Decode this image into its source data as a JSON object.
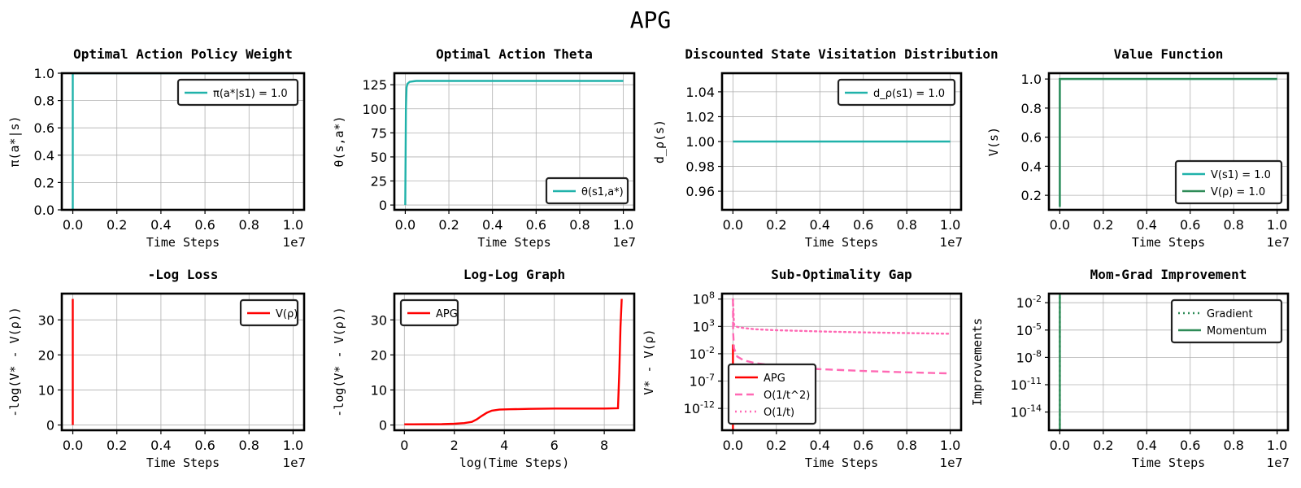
{
  "suptitle": "APG",
  "colors": {
    "teal": "#20b2aa",
    "green": "#2e8b57",
    "red": "#ff0000",
    "pink": "#ff69b4",
    "grid": "#b0b0b0"
  },
  "chart_data": [
    {
      "type": "line",
      "title": "Optimal Action Policy Weight",
      "xlabel": "Time Steps",
      "ylabel": "π(a*|s)",
      "xlim": [
        -0.05,
        1.05
      ],
      "ylim": [
        0,
        1
      ],
      "xticks": [
        0,
        0.2,
        0.4,
        0.6,
        0.8,
        1.0
      ],
      "xtick_labels": [
        "0.0",
        "0.2",
        "0.4",
        "0.6",
        "0.8",
        "1.0"
      ],
      "yticks": [
        0,
        0.2,
        0.4,
        0.6,
        0.8,
        1.0
      ],
      "ytick_labels": [
        "0.0",
        "0.2",
        "0.4",
        "0.6",
        "0.8",
        "1.0"
      ],
      "x_multiplier": "1e7",
      "grid": true,
      "legend_position": "top-right",
      "series": [
        {
          "name": "π(a*|s1) = 1.0",
          "color": "#20b2aa",
          "style": "solid",
          "x": [
            0,
            0,
            0.01,
            1.0
          ],
          "y": [
            0,
            1,
            1,
            1
          ]
        }
      ]
    },
    {
      "type": "line",
      "title": "Optimal Action Theta",
      "xlabel": "Time Steps",
      "ylabel": "θ(s,a*)",
      "xlim": [
        -0.05,
        1.05
      ],
      "ylim": [
        -5,
        137
      ],
      "xticks": [
        0,
        0.2,
        0.4,
        0.6,
        0.8,
        1.0
      ],
      "xtick_labels": [
        "0.0",
        "0.2",
        "0.4",
        "0.6",
        "0.8",
        "1.0"
      ],
      "yticks": [
        0,
        25,
        50,
        75,
        100,
        125
      ],
      "ytick_labels": [
        "0",
        "25",
        "50",
        "75",
        "100",
        "125"
      ],
      "x_multiplier": "1e7",
      "grid": true,
      "legend_position": "bottom-right",
      "series": [
        {
          "name": "θ(s1,a*)",
          "color": "#20b2aa",
          "style": "solid",
          "x": [
            0,
            0.003,
            0.006,
            0.01,
            0.02,
            0.05,
            1.0
          ],
          "y": [
            0,
            100,
            122,
            126,
            128,
            129,
            129
          ]
        }
      ]
    },
    {
      "type": "line",
      "title": "Discounted State Visitation Distribution",
      "xlabel": "Time Steps",
      "ylabel": "d_ρ(s)",
      "xlim": [
        -0.05,
        1.05
      ],
      "ylim": [
        0.945,
        1.055
      ],
      "xticks": [
        0,
        0.2,
        0.4,
        0.6,
        0.8,
        1.0
      ],
      "xtick_labels": [
        "0.0",
        "0.2",
        "0.4",
        "0.6",
        "0.8",
        "1.0"
      ],
      "yticks": [
        0.96,
        0.98,
        1.0,
        1.02,
        1.04
      ],
      "ytick_labels": [
        "0.96",
        "0.98",
        "1.00",
        "1.02",
        "1.04"
      ],
      "x_multiplier": "1e7",
      "grid": true,
      "legend_position": "top-right",
      "series": [
        {
          "name": "d_ρ(s1) = 1.0",
          "color": "#20b2aa",
          "style": "solid",
          "x": [
            0,
            1.0
          ],
          "y": [
            1.0,
            1.0
          ]
        }
      ]
    },
    {
      "type": "line",
      "title": "Value Function",
      "xlabel": "Time Steps",
      "ylabel": "V(s)",
      "xlim": [
        -0.05,
        1.05
      ],
      "ylim": [
        0.1,
        1.04
      ],
      "xticks": [
        0,
        0.2,
        0.4,
        0.6,
        0.8,
        1.0
      ],
      "xtick_labels": [
        "0.0",
        "0.2",
        "0.4",
        "0.6",
        "0.8",
        "1.0"
      ],
      "yticks": [
        0.2,
        0.4,
        0.6,
        0.8,
        1.0
      ],
      "ytick_labels": [
        "0.2",
        "0.4",
        "0.6",
        "0.8",
        "1.0"
      ],
      "x_multiplier": "1e7",
      "grid": true,
      "legend_position": "bottom-right",
      "series": [
        {
          "name": "V(s1) = 1.0",
          "color": "#20b2aa",
          "style": "solid",
          "x": [
            0,
            0,
            0.01,
            1.0
          ],
          "y": [
            0.12,
            1,
            1,
            1
          ]
        },
        {
          "name": "V(ρ) = 1.0",
          "color": "#2e8b57",
          "style": "solid",
          "x": [
            0,
            0,
            0.01,
            1.0
          ],
          "y": [
            0.12,
            1,
            1,
            1
          ]
        }
      ]
    },
    {
      "type": "line",
      "title": "-Log Loss",
      "xlabel": "Time Steps",
      "ylabel": "-log(V* - V(ρ))",
      "xlim": [
        -0.05,
        1.05
      ],
      "ylim": [
        -1.5,
        37.5
      ],
      "xticks": [
        0,
        0.2,
        0.4,
        0.6,
        0.8,
        1.0
      ],
      "xtick_labels": [
        "0.0",
        "0.2",
        "0.4",
        "0.6",
        "0.8",
        "1.0"
      ],
      "yticks": [
        0,
        10,
        20,
        30
      ],
      "ytick_labels": [
        "0",
        "10",
        "20",
        "30"
      ],
      "x_multiplier": "1e7",
      "grid": true,
      "legend_position": "top-right",
      "series": [
        {
          "name": "V(ρ)",
          "color": "#ff0000",
          "style": "solid",
          "x": [
            0,
            0
          ],
          "y": [
            0,
            36
          ]
        }
      ]
    },
    {
      "type": "line",
      "title": "Log-Log Graph",
      "xlabel": "log(Time Steps)",
      "ylabel": "-log(V* - V(ρ))",
      "xlim": [
        -0.4,
        9.2
      ],
      "ylim": [
        -1.5,
        37.5
      ],
      "xticks": [
        0,
        2,
        4,
        6,
        8
      ],
      "xtick_labels": [
        "0",
        "2",
        "4",
        "6",
        "8"
      ],
      "yticks": [
        0,
        10,
        20,
        30
      ],
      "ytick_labels": [
        "0",
        "10",
        "20",
        "30"
      ],
      "grid": true,
      "legend_position": "top-left",
      "series": [
        {
          "name": "APG",
          "color": "#ff0000",
          "style": "solid",
          "x": [
            0,
            1.5,
            2.0,
            2.4,
            2.7,
            2.9,
            3.1,
            3.3,
            3.5,
            3.8,
            4.2,
            5.0,
            6.0,
            7.0,
            8.0,
            8.55,
            8.6,
            8.65,
            8.7
          ],
          "y": [
            0.2,
            0.25,
            0.35,
            0.55,
            0.9,
            1.6,
            2.6,
            3.5,
            4.1,
            4.4,
            4.5,
            4.6,
            4.7,
            4.7,
            4.7,
            4.8,
            15,
            28,
            36
          ]
        }
      ]
    },
    {
      "type": "line",
      "title": "Sub-Optimality Gap",
      "xlabel": "Time Steps",
      "ylabel": "V* - V(ρ)",
      "yscale": "log",
      "xlim": [
        -0.05,
        1.05
      ],
      "ylim": [
        1e-16,
        1000000000.0
      ],
      "xticks": [
        0,
        0.2,
        0.4,
        0.6,
        0.8,
        1.0
      ],
      "xtick_labels": [
        "0.0",
        "0.2",
        "0.4",
        "0.6",
        "0.8",
        "1.0"
      ],
      "yticks": [
        100000000.0,
        1000.0,
        0.01,
        1e-07,
        1e-12
      ],
      "ytick_labels": [
        "10^8",
        "10^3",
        "10^-2",
        "10^-7",
        "10^-12"
      ],
      "x_multiplier": "1e7",
      "grid": true,
      "legend_position": "bottom-left",
      "series": [
        {
          "name": "APG",
          "color": "#ff0000",
          "style": "solid",
          "x": [
            0,
            0
          ],
          "y": [
            1e-16,
            0.5
          ]
        },
        {
          "name": "O(1/t^2)",
          "color": "#ff69b4",
          "style": "dashed",
          "x": [
            0,
            0.001,
            0.005,
            0.02,
            0.05,
            0.1,
            0.2,
            0.4,
            0.6,
            0.8,
            1.0
          ],
          "y": [
            100000000.0,
            100.0,
            0.1,
            0.003,
            0.0006,
            0.0002,
            6e-05,
            1.5e-05,
            7e-06,
            4e-06,
            2.5e-06
          ]
        },
        {
          "name": "O(1/t)",
          "color": "#ff69b4",
          "style": "dotted",
          "x": [
            0,
            0.005,
            0.02,
            0.05,
            0.1,
            0.2,
            0.4,
            0.6,
            0.8,
            1.0
          ],
          "y": [
            100000000.0,
            2000.0,
            800,
            500,
            300,
            200,
            120,
            80,
            60,
            45
          ]
        }
      ]
    },
    {
      "type": "line",
      "title": "Mom-Grad Improvement",
      "xlabel": "Time Steps",
      "ylabel": "Improvements",
      "yscale": "log",
      "xlim": [
        -0.05,
        1.05
      ],
      "ylim": [
        1e-16,
        0.1
      ],
      "xticks": [
        0,
        0.2,
        0.4,
        0.6,
        0.8,
        1.0
      ],
      "xtick_labels": [
        "0.0",
        "0.2",
        "0.4",
        "0.6",
        "0.8",
        "1.0"
      ],
      "yticks": [
        0.01,
        1e-05,
        1e-08,
        1e-11,
        1e-14
      ],
      "ytick_labels": [
        "10^-2",
        "10^-5",
        "10^-8",
        "10^-11",
        "10^-14"
      ],
      "x_multiplier": "1e7",
      "grid": true,
      "legend_position": "top-right",
      "series": [
        {
          "name": "Gradient",
          "color": "#2e8b57",
          "style": "dotted",
          "x": [
            0,
            0
          ],
          "y": [
            1e-16,
            0.08
          ]
        },
        {
          "name": "Momentum",
          "color": "#2e8b57",
          "style": "solid",
          "x": [
            0,
            0
          ],
          "y": [
            1e-16,
            0.08
          ]
        }
      ]
    }
  ]
}
